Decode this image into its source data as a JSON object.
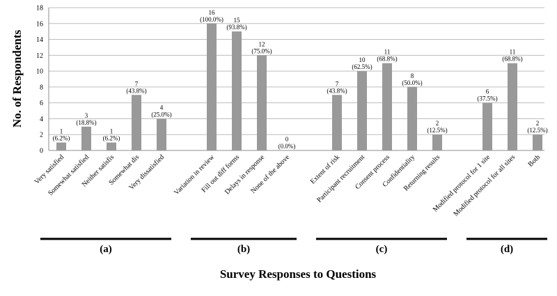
{
  "chart_data": {
    "type": "bar",
    "title": "",
    "ylabel": "No. of Respondents",
    "xlabel": "Survey Responses to Questions",
    "ylim": [
      0,
      18
    ],
    "yticks": [
      0,
      2,
      4,
      6,
      8,
      10,
      12,
      14,
      16,
      18
    ],
    "grid": true,
    "legend": "none",
    "bar_color": "#999999",
    "groups": [
      {
        "label": "(a)",
        "bars": [
          {
            "category": "Very satisfied",
            "value": 1,
            "label": "(6.2%)"
          },
          {
            "category": "Somewhat satisfied",
            "value": 3,
            "label": "(18.8%)"
          },
          {
            "category": "Neither satisfis",
            "value": 1,
            "label": "(6.2%)"
          },
          {
            "category": "Somewhat dis",
            "value": 7,
            "label": "(43.8%)"
          },
          {
            "category": "Very dissatisfied",
            "value": 4,
            "label": "(25.0%)"
          }
        ]
      },
      {
        "label": "(b)",
        "bars": [
          {
            "category": "Variation in review",
            "value": 16,
            "label": "(100.0%)"
          },
          {
            "category": "Fill out diff forms",
            "value": 15,
            "label": "(93.8%)"
          },
          {
            "category": "Delays in response",
            "value": 12,
            "label": "(75.0%)"
          },
          {
            "category": "None of the above",
            "value": 0,
            "label": "(0.0%)"
          }
        ]
      },
      {
        "label": "(c)",
        "bars": [
          {
            "category": "Extent of risk",
            "value": 7,
            "label": "(43.8%)"
          },
          {
            "category": "Participant recruitment",
            "value": 10,
            "label": "(62.5%)"
          },
          {
            "category": "Consent process",
            "value": 11,
            "label": "(68.8%)"
          },
          {
            "category": "Confidentiality",
            "value": 8,
            "label": "(50.0%)"
          },
          {
            "category": "Returning results",
            "value": 2,
            "label": "(12.5%)"
          }
        ]
      },
      {
        "label": "(d)",
        "bars": [
          {
            "category": "Modified protocol for 1 site",
            "value": 6,
            "label": "(37.5%)"
          },
          {
            "category": "Modified protocol for all sites",
            "value": 11,
            "label": "(68.8%)"
          },
          {
            "category": "Both",
            "value": 2,
            "label": "(12.5%)"
          }
        ]
      }
    ]
  }
}
